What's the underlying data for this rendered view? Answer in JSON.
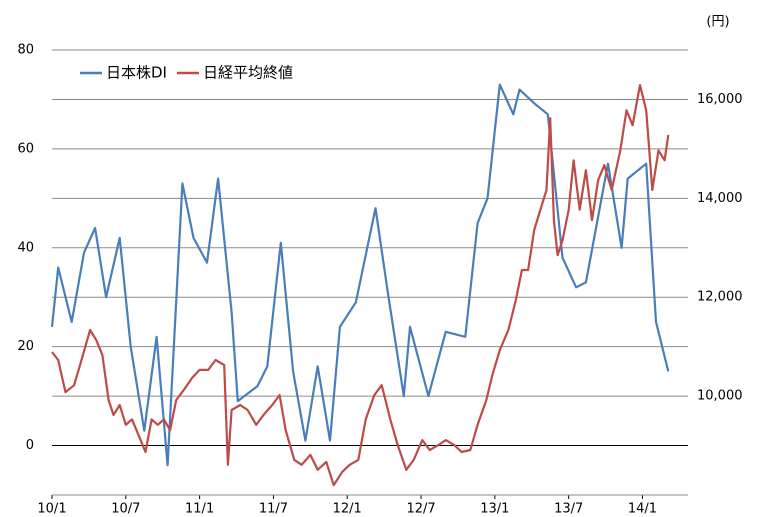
{
  "chart_data": {
    "type": "line",
    "y2_label": "(円)",
    "xlim": [
      0,
      51.7
    ],
    "xticks": [
      {
        "value": 0,
        "label": "10/1"
      },
      {
        "value": 6,
        "label": "10/7"
      },
      {
        "value": 12,
        "label": "11/1"
      },
      {
        "value": 18,
        "label": "11/7"
      },
      {
        "value": 24,
        "label": "12/1"
      },
      {
        "value": 30,
        "label": "12/7"
      },
      {
        "value": 36,
        "label": "13/1"
      },
      {
        "value": 42,
        "label": "13/7"
      },
      {
        "value": 48,
        "label": "14/1"
      }
    ],
    "ylim": [
      -10,
      80
    ],
    "yticks": [
      0,
      20,
      40,
      60,
      80
    ],
    "y2lim": [
      8000,
      17000
    ],
    "y2ticks": [
      {
        "value": 10000,
        "label": "10,000"
      },
      {
        "value": 12000,
        "label": "12,000"
      },
      {
        "value": 14000,
        "label": "14,000"
      },
      {
        "value": 16000,
        "label": "16,000"
      }
    ],
    "grid": true,
    "legend": "top-left",
    "series": [
      {
        "name": "日本株DI",
        "color": "#4a7ebb",
        "x": [
          0,
          0.5,
          1.6,
          2.6,
          3.5,
          4.4,
          5.5,
          6.4,
          7.5,
          8.5,
          9.4,
          10.6,
          11.5,
          12.6,
          13.5,
          14.6,
          15.1,
          16.7,
          17.5,
          18.6,
          19.6,
          20.6,
          21.6,
          22.6,
          23.4,
          24.7,
          26.3,
          27.3,
          28.6,
          29.1,
          30.6,
          32.0,
          33.6,
          34.6,
          35.4,
          36.4,
          37.5,
          38.0,
          39.3,
          40.3,
          41.5,
          42.6,
          43.4,
          45.2,
          46.3,
          46.8,
          48.3,
          49.1,
          50.1
        ],
        "values": [
          24,
          36,
          25,
          39,
          44,
          30,
          42,
          20,
          3,
          22,
          -4,
          53,
          42,
          37,
          54,
          27,
          9,
          12,
          16,
          41,
          15,
          1,
          16,
          1,
          24,
          29,
          48,
          31,
          10,
          24,
          10,
          23,
          22,
          45,
          50,
          73,
          67,
          72,
          69,
          67,
          38,
          32,
          33,
          57,
          40,
          54,
          57,
          25,
          15
        ]
      },
      {
        "name": "日経平均終値",
        "color": "#be4b48",
        "axis": "y2",
        "x": [
          0,
          0.5,
          1.1,
          1.8,
          2.4,
          3.1,
          3.6,
          4.1,
          4.6,
          5.0,
          5.5,
          6.0,
          6.5,
          7.2,
          7.6,
          8.1,
          8.6,
          9.1,
          9.6,
          10.1,
          10.7,
          11.4,
          12.0,
          12.7,
          13.3,
          14.0,
          14.3,
          14.6,
          15.3,
          15.9,
          16.6,
          17.2,
          17.9,
          18.5,
          19.0,
          19.7,
          20.3,
          21.0,
          21.6,
          22.3,
          22.9,
          23.6,
          24.2,
          24.9,
          25.5,
          26.2,
          26.8,
          27.5,
          28.1,
          28.8,
          29.4,
          30.1,
          30.7,
          31.4,
          32.0,
          32.7,
          33.3,
          34.0,
          34.6,
          35.3,
          35.8,
          36.4,
          37.1,
          37.7,
          38.2,
          38.7,
          39.2,
          39.7,
          40.2,
          40.5,
          40.8,
          41.1,
          41.5,
          42.0,
          42.4,
          42.9,
          43.4,
          43.9,
          44.4,
          44.9,
          45.5,
          46.2,
          46.7,
          47.2,
          47.8,
          48.3,
          48.8,
          49.3,
          49.8,
          50.1
        ],
        "values": [
          10890,
          10730,
          10080,
          10220,
          10730,
          11340,
          11130,
          10830,
          9920,
          9620,
          9820,
          9420,
          9530,
          9110,
          8870,
          9530,
          9420,
          9530,
          9310,
          9920,
          10120,
          10370,
          10530,
          10530,
          10730,
          10630,
          8610,
          9720,
          9820,
          9720,
          9420,
          9620,
          9820,
          10020,
          9310,
          8710,
          8610,
          8810,
          8510,
          8670,
          8200,
          8470,
          8610,
          8710,
          9530,
          10020,
          10220,
          9530,
          9010,
          8510,
          8710,
          9110,
          8910,
          9010,
          9110,
          9010,
          8870,
          8910,
          9420,
          9920,
          10430,
          10930,
          11340,
          11940,
          12550,
          12550,
          13360,
          13770,
          14170,
          15620,
          13560,
          12850,
          13150,
          13770,
          14770,
          13770,
          14570,
          13560,
          14370,
          14670,
          14170,
          14970,
          15780,
          15480,
          16290,
          15780,
          14170,
          14970,
          14770,
          15280
        ]
      }
    ]
  }
}
